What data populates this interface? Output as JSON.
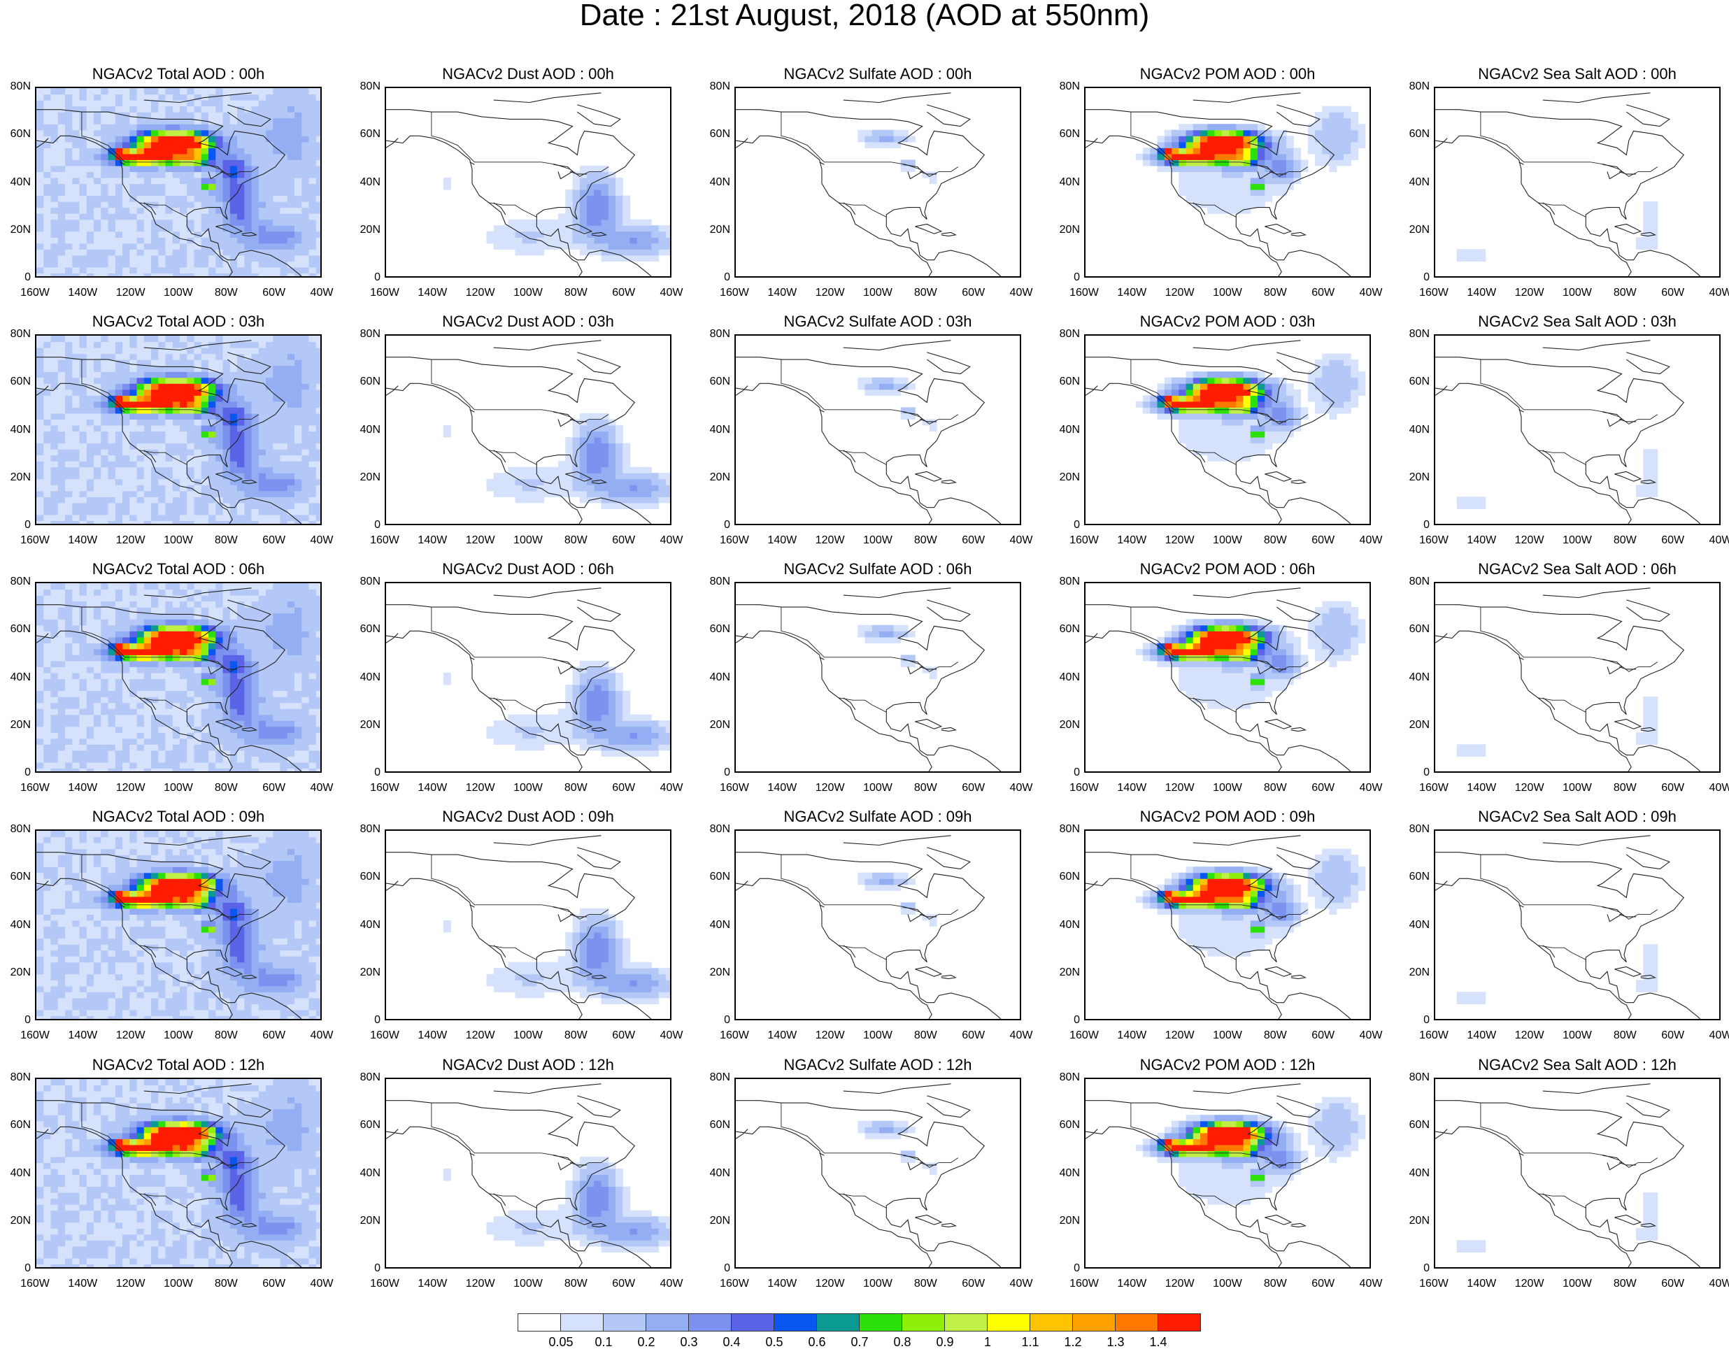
{
  "figure": {
    "title": "Date : 21st August, 2018 (AOD at 550nm)"
  },
  "panels": [
    [
      {
        "title": "NGACv2 Total AOD : 00h",
        "field": "total",
        "hour": 0
      },
      {
        "title": "NGACv2 Dust AOD : 00h",
        "field": "dust",
        "hour": 0
      },
      {
        "title": "NGACv2 Sulfate AOD : 00h",
        "field": "sulfate",
        "hour": 0
      },
      {
        "title": "NGACv2 POM AOD : 00h",
        "field": "pom",
        "hour": 0
      },
      {
        "title": "NGACv2 Sea Salt AOD : 00h",
        "field": "seasalt",
        "hour": 0
      }
    ],
    [
      {
        "title": "NGACv2 Total AOD : 03h",
        "field": "total",
        "hour": 3
      },
      {
        "title": "NGACv2 Dust AOD : 03h",
        "field": "dust",
        "hour": 3
      },
      {
        "title": "NGACv2 Sulfate AOD : 03h",
        "field": "sulfate",
        "hour": 3
      },
      {
        "title": "NGACv2 POM AOD : 03h",
        "field": "pom",
        "hour": 3
      },
      {
        "title": "NGACv2 Sea Salt AOD : 03h",
        "field": "seasalt",
        "hour": 3
      }
    ],
    [
      {
        "title": "NGACv2 Total AOD : 06h",
        "field": "total",
        "hour": 6
      },
      {
        "title": "NGACv2 Dust AOD : 06h",
        "field": "dust",
        "hour": 6
      },
      {
        "title": "NGACv2 Sulfate AOD : 06h",
        "field": "sulfate",
        "hour": 6
      },
      {
        "title": "NGACv2 POM AOD : 06h",
        "field": "pom",
        "hour": 6
      },
      {
        "title": "NGACv2 Sea Salt AOD : 06h",
        "field": "seasalt",
        "hour": 6
      }
    ],
    [
      {
        "title": "NGACv2 Total AOD : 09h",
        "field": "total",
        "hour": 9
      },
      {
        "title": "NGACv2 Dust AOD : 09h",
        "field": "dust",
        "hour": 9
      },
      {
        "title": "NGACv2 Sulfate AOD : 09h",
        "field": "sulfate",
        "hour": 9
      },
      {
        "title": "NGACv2 POM AOD : 09h",
        "field": "pom",
        "hour": 9
      },
      {
        "title": "NGACv2 Sea Salt  AOD : 09h",
        "field": "seasalt",
        "hour": 9
      }
    ],
    [
      {
        "title": "NGACv2 Total AOD  : 12h",
        "field": "total",
        "hour": 12
      },
      {
        "title": "NGACv2 Dust AOD : 12h",
        "field": "dust",
        "hour": 12
      },
      {
        "title": "NGACv2 Sulfate AOD : 12h",
        "field": "sulfate",
        "hour": 12
      },
      {
        "title": "NGACv2 POM  AOD : 12h",
        "field": "pom",
        "hour": 12
      },
      {
        "title": "NGACv2 Sea Salt  AOD : 12h",
        "field": "seasalt",
        "hour": 12
      }
    ]
  ],
  "axes": {
    "lat_ticks": [
      "80N",
      "60N",
      "40N",
      "20N",
      "0"
    ],
    "lon_ticks": [
      "160W",
      "140W",
      "120W",
      "100W",
      "80W",
      "60W",
      "40W"
    ],
    "lat_range": [
      0,
      80
    ],
    "lon_range": [
      -160,
      -40
    ]
  },
  "colorbar": {
    "colors": [
      "#ffffff",
      "#d6e2fb",
      "#b4c8f7",
      "#94aef3",
      "#7b93ef",
      "#5b64e6",
      "#0a56f0",
      "#0a9a92",
      "#2ce00a",
      "#8ef00a",
      "#c0f046",
      "#ffff00",
      "#ffc300",
      "#ff9f00",
      "#ff7800",
      "#ff1c00"
    ],
    "labels": [
      "0.05",
      "0.1",
      "0.2",
      "0.3",
      "0.4",
      "0.5",
      "0.6",
      "0.7",
      "0.8",
      "0.9",
      "1",
      "1.1",
      "1.2",
      "1.3",
      "1.4"
    ]
  }
}
